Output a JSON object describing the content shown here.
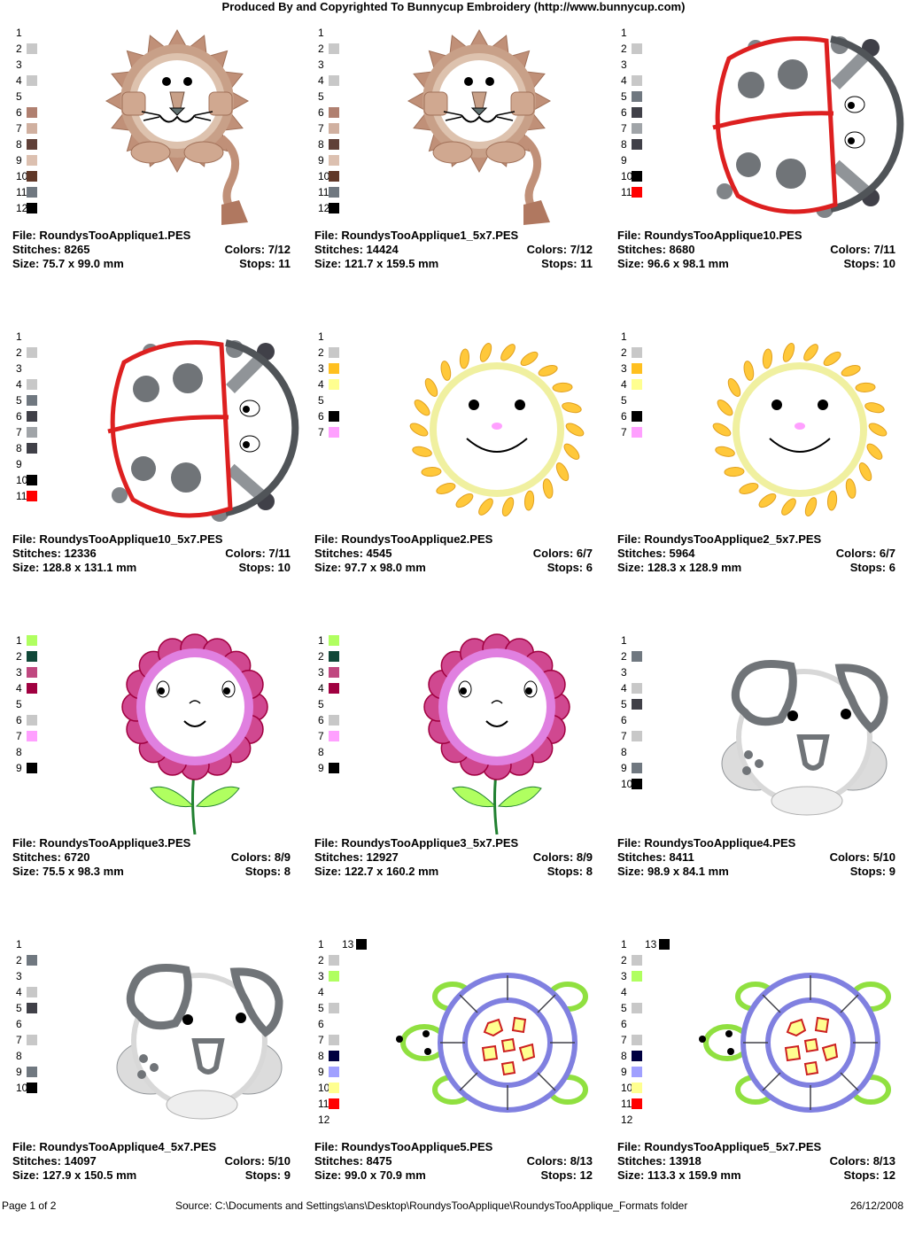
{
  "header": "Produced By and Copyrighted To Bunnycup Embroidery (http://www.bunnycup.com)",
  "labels": {
    "file": "File:",
    "stitches": "Stitches:",
    "colors": "Colors:",
    "size": "Size:",
    "stops": "Stops:"
  },
  "footer": {
    "page": "Page 1 of 2",
    "source": "Source: C:\\Documents and Settings\\ans\\Desktop\\RoundysTooApplique\\RoundysTooApplique_Formats folder",
    "date": "26/12/2008"
  },
  "designs": [
    {
      "file": "RoundysTooApplique1.PES",
      "stitches": "8265",
      "colors": "7/12",
      "size": "75.7 x 99.0 mm",
      "stops": "11",
      "art": "lion-icon",
      "palette": [
        "",
        "#c8c8c8",
        "",
        "#c8c8c8",
        "",
        "#b08070",
        "#d0b0a0",
        "#604038",
        "#dcc0b0",
        "#603828",
        "#707880",
        "#000000"
      ]
    },
    {
      "file": "RoundysTooApplique1_5x7.PES",
      "stitches": "14424",
      "colors": "7/12",
      "size": "121.7 x 159.5 mm",
      "stops": "11",
      "art": "lion-icon",
      "palette": [
        "",
        "#c8c8c8",
        "",
        "#c8c8c8",
        "",
        "#b08070",
        "#d0b0a0",
        "#604038",
        "#dcc0b0",
        "#603828",
        "#707880",
        "#000000"
      ]
    },
    {
      "file": "RoundysTooApplique10.PES",
      "stitches": "8680",
      "colors": "7/11",
      "size": "96.6 x 98.1 mm",
      "stops": "10",
      "art": "ladybug-icon",
      "palette": [
        "",
        "#c8c8c8",
        "",
        "#c8c8c8",
        "#707880",
        "#404048",
        "#a0a4a8",
        "#404048",
        "",
        "#000000",
        "#ff0000"
      ]
    },
    {
      "file": "RoundysTooApplique10_5x7.PES",
      "stitches": "12336",
      "colors": "7/11",
      "size": "128.8 x 131.1 mm",
      "stops": "10",
      "art": "ladybug-icon",
      "palette": [
        "",
        "#c8c8c8",
        "",
        "#c8c8c8",
        "#707880",
        "#404048",
        "#a0a4a8",
        "#404048",
        "",
        "#000000",
        "#ff0000"
      ]
    },
    {
      "file": "RoundysTooApplique2.PES",
      "stitches": "4545",
      "colors": "6/7",
      "size": "97.7 x 98.0 mm",
      "stops": "6",
      "art": "sun-icon",
      "palette": [
        "",
        "#c8c8c8",
        "#ffc020",
        "#ffff90",
        "",
        "#000000",
        "#ffa0ff"
      ]
    },
    {
      "file": "RoundysTooApplique2_5x7.PES",
      "stitches": "5964",
      "colors": "6/7",
      "size": "128.3 x 128.9 mm",
      "stops": "6",
      "art": "sun-icon",
      "palette": [
        "",
        "#c8c8c8",
        "#ffc020",
        "#ffff90",
        "",
        "#000000",
        "#ffa0ff"
      ]
    },
    {
      "file": "RoundysTooApplique3.PES",
      "stitches": "6720",
      "colors": "8/9",
      "size": "75.5 x 98.3 mm",
      "stops": "8",
      "art": "flower-icon",
      "palette": [
        "#b0ff60",
        "#104838",
        "#c04880",
        "#a00040",
        "",
        "#c8c8c8",
        "#ffa0ff",
        "",
        "#000000"
      ]
    },
    {
      "file": "RoundysTooApplique3_5x7.PES",
      "stitches": "12927",
      "colors": "8/9",
      "size": "122.7 x 160.2 mm",
      "stops": "8",
      "art": "flower-icon",
      "palette": [
        "#b0ff60",
        "#104838",
        "#c04880",
        "#a00040",
        "",
        "#c8c8c8",
        "#ffa0ff",
        "",
        "#000000"
      ]
    },
    {
      "file": "RoundysTooApplique4.PES",
      "stitches": "8411",
      "colors": "5/10",
      "size": "98.9 x 84.1 mm",
      "stops": "9",
      "art": "puppy-icon",
      "palette": [
        "",
        "#707880",
        "",
        "#c8c8c8",
        "#404048",
        "",
        "#c8c8c8",
        "",
        "#707880",
        "#000000"
      ]
    },
    {
      "file": "RoundysTooApplique4_5x7.PES",
      "stitches": "14097",
      "colors": "5/10",
      "size": "127.9 x 150.5 mm",
      "stops": "9",
      "art": "puppy-icon",
      "palette": [
        "",
        "#707880",
        "",
        "#c8c8c8",
        "#404048",
        "",
        "#c8c8c8",
        "",
        "#707880",
        "#000000"
      ]
    },
    {
      "file": "RoundysTooApplique5.PES",
      "stitches": "8475",
      "colors": "8/13",
      "size": "99.0 x 70.9 mm",
      "stops": "12",
      "art": "turtle-icon",
      "palette": [
        "",
        "#c8c8c8",
        "#b0ff60",
        "",
        "#c8c8c8",
        "",
        "#c8c8c8",
        "#000040",
        "#a0a0ff",
        "#ffff90",
        "#ff0000",
        ""
      ],
      "extra": {
        "num": "13",
        "color": "#000000"
      }
    },
    {
      "file": "RoundysTooApplique5_5x7.PES",
      "stitches": "13918",
      "colors": "8/13",
      "size": "113.3 x 159.9 mm",
      "stops": "12",
      "art": "turtle-icon",
      "palette": [
        "",
        "#c8c8c8",
        "#b0ff60",
        "",
        "#c8c8c8",
        "",
        "#c8c8c8",
        "#000040",
        "#a0a0ff",
        "#ffff90",
        "#ff0000",
        ""
      ],
      "extra": {
        "num": "13",
        "color": "#000000"
      }
    }
  ]
}
